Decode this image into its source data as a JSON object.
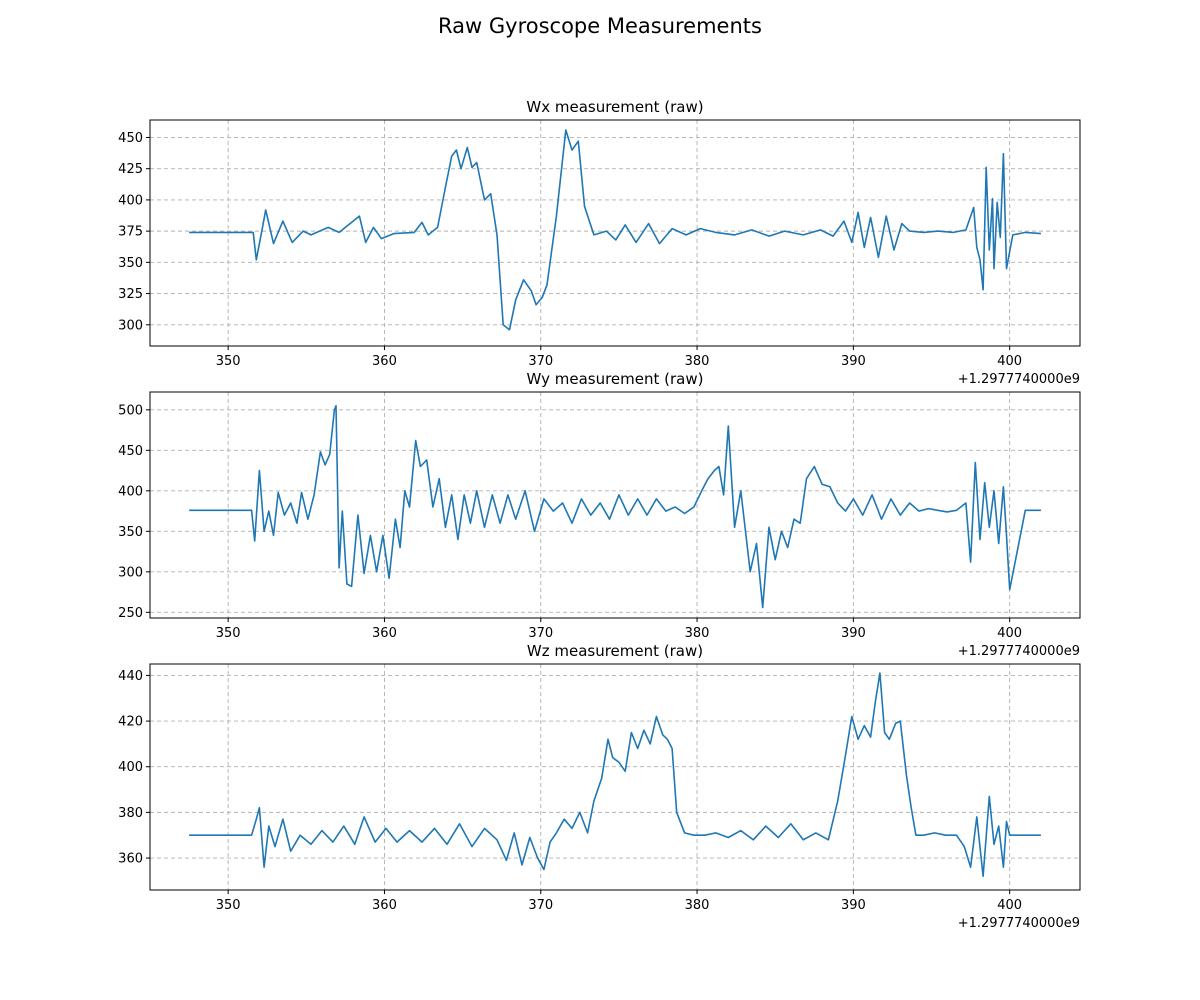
{
  "figure": {
    "title": "Raw Gyroscope Measurements",
    "line_color": "#1f77b4",
    "grid_color": "#b0b0b0"
  },
  "chart_data": [
    {
      "type": "line",
      "title": "Wx measurement (raw)",
      "xlabel": "",
      "ylabel": "",
      "x_offset_label": "+1.2977740000e9",
      "xlim": [
        345,
        404.5
      ],
      "ylim": [
        283,
        464
      ],
      "xticks": [
        350,
        360,
        370,
        380,
        390,
        400
      ],
      "yticks": [
        300,
        325,
        350,
        375,
        400,
        425,
        450
      ],
      "grid": true,
      "x": [
        347.5,
        351.6,
        351.8,
        352.2,
        352.4,
        352.9,
        353.5,
        354.1,
        354.8,
        355.3,
        356.4,
        357.1,
        358.4,
        358.8,
        359.3,
        359.8,
        360.6,
        361.9,
        362.4,
        362.8,
        363.4,
        363.9,
        364.3,
        364.6,
        364.9,
        365.3,
        365.6,
        365.9,
        366.4,
        366.8,
        367.2,
        367.6,
        368.0,
        368.4,
        368.9,
        369.4,
        369.7,
        370.1,
        370.4,
        371.0,
        371.6,
        372.0,
        372.4,
        372.8,
        373.4,
        374.2,
        374.8,
        375.4,
        376.1,
        376.9,
        377.6,
        378.4,
        379.3,
        380.2,
        381.2,
        382.4,
        383.5,
        384.6,
        385.6,
        386.8,
        387.9,
        388.7,
        389.4,
        389.9,
        390.3,
        390.7,
        391.1,
        391.6,
        392.1,
        392.6,
        393.1,
        393.6,
        394.5,
        395.4,
        396.4,
        397.2,
        397.7,
        397.9,
        398.1,
        398.3,
        398.5,
        398.7,
        398.9,
        399.0,
        399.2,
        399.4,
        399.6,
        399.8,
        400.2,
        401.0,
        402.0
      ],
      "y": [
        374,
        374,
        352,
        378,
        392,
        365,
        383,
        366,
        375,
        372,
        378,
        374,
        387,
        366,
        378,
        369,
        373,
        374,
        382,
        372,
        378,
        410,
        435,
        440,
        425,
        442,
        426,
        430,
        400,
        405,
        372,
        300,
        296,
        320,
        336,
        327,
        316,
        322,
        332,
        387,
        456,
        440,
        447,
        395,
        372,
        375,
        368,
        380,
        366,
        381,
        365,
        377,
        372,
        377,
        374,
        372,
        376,
        371,
        375,
        372,
        376,
        371,
        383,
        366,
        390,
        362,
        386,
        354,
        387,
        360,
        381,
        375,
        374,
        375,
        374,
        376,
        394,
        362,
        352,
        328,
        426,
        360,
        401,
        345,
        398,
        370,
        437,
        345,
        372,
        374,
        373
      ]
    },
    {
      "type": "line",
      "title": "Wy measurement (raw)",
      "xlabel": "",
      "ylabel": "",
      "x_offset_label": "+1.2977740000e9",
      "xlim": [
        345,
        404.5
      ],
      "ylim": [
        243,
        522
      ],
      "xticks": [
        350,
        360,
        370,
        380,
        390,
        400
      ],
      "yticks": [
        250,
        300,
        350,
        400,
        450,
        500
      ],
      "grid": true,
      "x": [
        347.5,
        351.5,
        351.7,
        352.0,
        352.3,
        352.6,
        352.9,
        353.2,
        353.6,
        354.0,
        354.4,
        354.7,
        355.1,
        355.5,
        355.9,
        356.2,
        356.5,
        356.8,
        356.9,
        357.1,
        357.3,
        357.6,
        357.9,
        358.3,
        358.7,
        359.1,
        359.5,
        359.9,
        360.3,
        360.7,
        361.0,
        361.3,
        361.6,
        362.0,
        362.3,
        362.7,
        363.1,
        363.5,
        363.9,
        364.3,
        364.7,
        365.1,
        365.5,
        365.9,
        366.4,
        366.9,
        367.4,
        367.9,
        368.4,
        369.0,
        369.6,
        370.2,
        370.8,
        371.4,
        372.0,
        372.6,
        373.2,
        373.8,
        374.4,
        375.0,
        375.6,
        376.2,
        376.8,
        377.4,
        378.0,
        378.6,
        379.2,
        379.8,
        380.3,
        380.7,
        381.1,
        381.4,
        381.7,
        382.0,
        382.4,
        382.8,
        383.1,
        383.4,
        383.8,
        384.2,
        384.6,
        385.0,
        385.4,
        385.8,
        386.2,
        386.6,
        387.0,
        387.5,
        388.0,
        388.5,
        389.0,
        389.5,
        390.0,
        390.6,
        391.2,
        391.8,
        392.4,
        393.0,
        393.6,
        394.2,
        394.8,
        395.4,
        396.0,
        396.6,
        397.2,
        397.5,
        397.8,
        398.1,
        398.4,
        398.7,
        399.0,
        399.3,
        399.6,
        399.8,
        400.0,
        401.0,
        402.0
      ],
      "y": [
        376,
        376,
        338,
        425,
        350,
        375,
        345,
        398,
        370,
        385,
        360,
        398,
        365,
        395,
        448,
        432,
        445,
        500,
        505,
        305,
        375,
        285,
        282,
        370,
        298,
        345,
        300,
        345,
        292,
        365,
        330,
        400,
        380,
        462,
        430,
        438,
        380,
        415,
        355,
        395,
        340,
        395,
        360,
        400,
        355,
        395,
        360,
        395,
        365,
        400,
        350,
        390,
        375,
        385,
        360,
        390,
        370,
        385,
        365,
        395,
        370,
        390,
        370,
        390,
        375,
        380,
        372,
        380,
        400,
        415,
        425,
        430,
        395,
        480,
        355,
        400,
        350,
        300,
        335,
        256,
        355,
        315,
        350,
        330,
        365,
        360,
        415,
        430,
        408,
        405,
        385,
        375,
        390,
        370,
        395,
        365,
        390,
        370,
        385,
        375,
        378,
        376,
        374,
        376,
        385,
        312,
        435,
        340,
        410,
        355,
        400,
        335,
        405,
        345,
        278,
        376,
        376
      ]
    },
    {
      "type": "line",
      "title": "Wz measurement (raw)",
      "xlabel": "",
      "ylabel": "",
      "x_offset_label": "+1.2977740000e9",
      "xlim": [
        345,
        404.5
      ],
      "ylim": [
        346,
        445
      ],
      "xticks": [
        350,
        360,
        370,
        380,
        390,
        400
      ],
      "yticks": [
        360,
        380,
        400,
        420,
        440
      ],
      "grid": true,
      "x": [
        347.5,
        351.5,
        351.8,
        352.0,
        352.3,
        352.6,
        353.0,
        353.5,
        354.0,
        354.6,
        355.3,
        356.0,
        356.7,
        357.4,
        358.1,
        358.7,
        359.4,
        360.1,
        360.8,
        361.6,
        362.4,
        363.2,
        364.0,
        364.8,
        365.6,
        366.4,
        367.2,
        367.8,
        368.3,
        368.8,
        369.3,
        369.8,
        370.2,
        370.6,
        371.0,
        371.5,
        372.0,
        372.5,
        373.0,
        373.4,
        373.9,
        374.3,
        374.6,
        375.0,
        375.4,
        375.8,
        376.2,
        376.6,
        377.0,
        377.4,
        377.8,
        378.1,
        378.4,
        378.7,
        379.2,
        379.8,
        380.5,
        381.2,
        382.0,
        382.8,
        383.6,
        384.4,
        385.2,
        386.0,
        386.8,
        387.6,
        388.4,
        389.0,
        389.5,
        389.9,
        390.3,
        390.7,
        391.1,
        391.4,
        391.7,
        392.0,
        392.3,
        392.7,
        393.0,
        393.4,
        393.7,
        394.0,
        394.5,
        395.2,
        395.9,
        396.6,
        397.1,
        397.5,
        397.9,
        398.3,
        398.7,
        399.0,
        399.3,
        399.6,
        399.8,
        400.0,
        401.0,
        402.0
      ],
      "y": [
        370,
        370,
        377,
        382,
        356,
        374,
        365,
        377,
        363,
        370,
        366,
        372,
        367,
        374,
        366,
        378,
        367,
        373,
        367,
        372,
        367,
        373,
        366,
        375,
        365,
        373,
        368,
        359,
        371,
        357,
        369,
        360,
        355,
        367,
        371,
        377,
        373,
        380,
        371,
        385,
        395,
        412,
        404,
        402,
        398,
        415,
        408,
        416,
        410,
        422,
        414,
        412,
        408,
        380,
        371,
        370,
        370,
        371,
        369,
        372,
        368,
        374,
        369,
        375,
        368,
        371,
        368,
        385,
        405,
        422,
        412,
        418,
        413,
        428,
        441,
        415,
        412,
        419,
        420,
        396,
        382,
        370,
        370,
        371,
        370,
        370,
        365,
        356,
        378,
        352,
        387,
        366,
        374,
        356,
        376,
        370,
        370,
        370
      ]
    }
  ]
}
